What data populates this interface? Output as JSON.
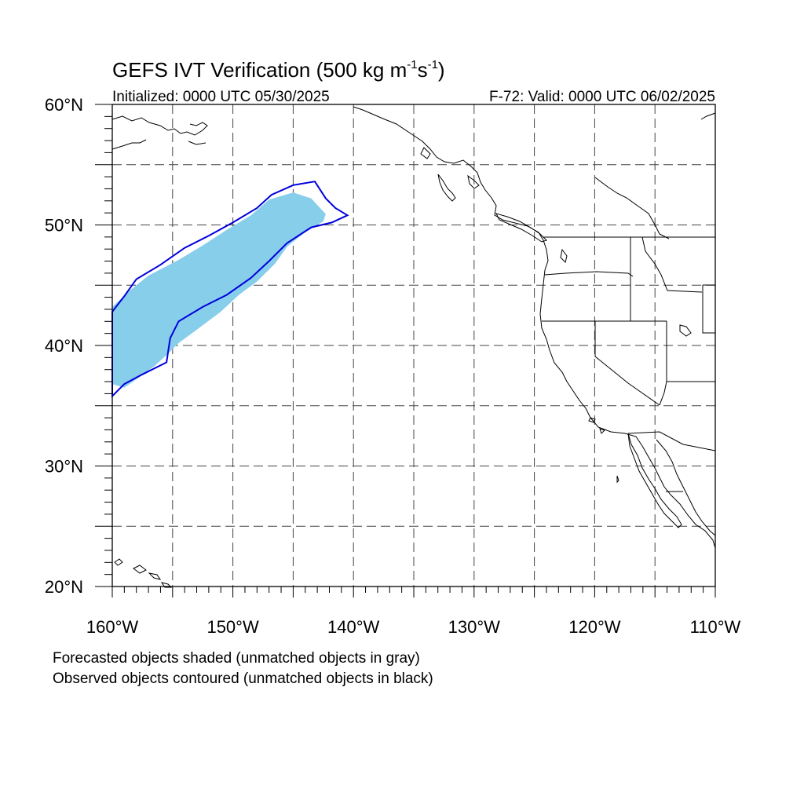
{
  "title": {
    "main": "GEFS IVT Verification (500 kg m",
    "sup1": "-1",
    "mid": "s",
    "sup2": "-1",
    "end": ")"
  },
  "subtitle_left": "Initialized: 0000 UTC 05/30/2025",
  "subtitle_right": "F-72: Valid: 0000 UTC 06/02/2025",
  "map": {
    "lon_range": [
      -160,
      -110
    ],
    "lat_range": [
      20,
      60
    ],
    "lon_ticks": [
      {
        "value": -160,
        "label": "160°W"
      },
      {
        "value": -150,
        "label": "150°W"
      },
      {
        "value": -140,
        "label": "140°W"
      },
      {
        "value": -130,
        "label": "130°W"
      },
      {
        "value": -120,
        "label": "120°W"
      },
      {
        "value": -110,
        "label": "110°W"
      }
    ],
    "lat_ticks": [
      {
        "value": 20,
        "label": "20°N"
      },
      {
        "value": 30,
        "label": "30°N"
      },
      {
        "value": 40,
        "label": "40°N"
      },
      {
        "value": 50,
        "label": "50°N"
      },
      {
        "value": 60,
        "label": "60°N"
      }
    ],
    "grid_lon_step": 5,
    "grid_lat_step": 5,
    "forecast_fill_color": "#87ceeb",
    "observed_contour_color": "#0000dd",
    "forecast_object": [
      [
        -160,
        36.8
      ],
      [
        -159,
        36.5
      ],
      [
        -158,
        37.2
      ],
      [
        -156.5,
        38.3
      ],
      [
        -155.5,
        39.2
      ],
      [
        -154.5,
        40.2
      ],
      [
        -153,
        41.3
      ],
      [
        -151,
        42.8
      ],
      [
        -149.5,
        44.2
      ],
      [
        -148,
        45.3
      ],
      [
        -146.5,
        46.8
      ],
      [
        -145.5,
        48.2
      ],
      [
        -144,
        49.4
      ],
      [
        -142.5,
        50.3
      ],
      [
        -142.3,
        50.9
      ],
      [
        -143.5,
        52.2
      ],
      [
        -145,
        52.7
      ],
      [
        -147,
        52.1
      ],
      [
        -148.5,
        50.8
      ],
      [
        -150.5,
        49.6
      ],
      [
        -152.5,
        48.3
      ],
      [
        -154.5,
        47.1
      ],
      [
        -157,
        45.8
      ],
      [
        -158.5,
        44.6
      ],
      [
        -160,
        43.2
      ]
    ],
    "observed_object": [
      [
        -160,
        35.8
      ],
      [
        -159,
        36.8
      ],
      [
        -157.5,
        37.6
      ],
      [
        -155.5,
        38.6
      ],
      [
        -155.2,
        40.6
      ],
      [
        -154.5,
        42
      ],
      [
        -152.5,
        43.2
      ],
      [
        -150.5,
        44.2
      ],
      [
        -148.5,
        45.6
      ],
      [
        -147,
        47
      ],
      [
        -145.5,
        48.5
      ],
      [
        -143.5,
        49.8
      ],
      [
        -141.8,
        50.2
      ],
      [
        -140.5,
        50.8
      ],
      [
        -141.5,
        51.4
      ],
      [
        -142.3,
        52.2
      ],
      [
        -143.2,
        53.6
      ],
      [
        -145,
        53.3
      ],
      [
        -146.8,
        52.5
      ],
      [
        -148,
        51.4
      ],
      [
        -150,
        50.2
      ],
      [
        -152,
        49.1
      ],
      [
        -154,
        48.1
      ],
      [
        -156,
        46.7
      ],
      [
        -158,
        45.5
      ],
      [
        -159,
        44.1
      ],
      [
        -160,
        42.8
      ]
    ]
  },
  "footer": {
    "line1": "Forecasted objects shaded (unmatched objects in gray)",
    "line2": "Observed objects contoured (unmatched objects in black)"
  }
}
